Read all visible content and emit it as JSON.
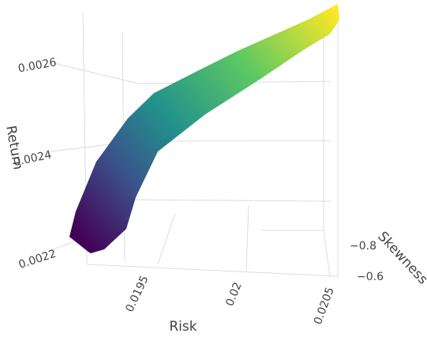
{
  "chart_data": {
    "type": "surface3d",
    "xlabel": "Risk",
    "ylabel": "Skewness",
    "zlabel": "Return",
    "x_ticks": [
      "0.0195",
      "0.02",
      "0.0205"
    ],
    "y_ticks": [
      "−0.8",
      "−0.6"
    ],
    "z_ticks": [
      "0.0022",
      "0.0024",
      "0.0026"
    ],
    "colorscale": "viridis",
    "colors": [
      "#440154",
      "#3b528b",
      "#21918c",
      "#5ec962",
      "#fde725"
    ],
    "zrange": [
      0.00218,
      0.00268
    ],
    "grid": true,
    "surface": [
      {
        "return": 0.00219
      },
      {
        "return": 0.00222
      },
      {
        "return": 0.00228
      },
      {
        "return": 0.00238
      },
      {
        "return": 0.00248
      },
      {
        "return": 0.00258
      },
      {
        "return": 0.00265
      }
    ]
  }
}
